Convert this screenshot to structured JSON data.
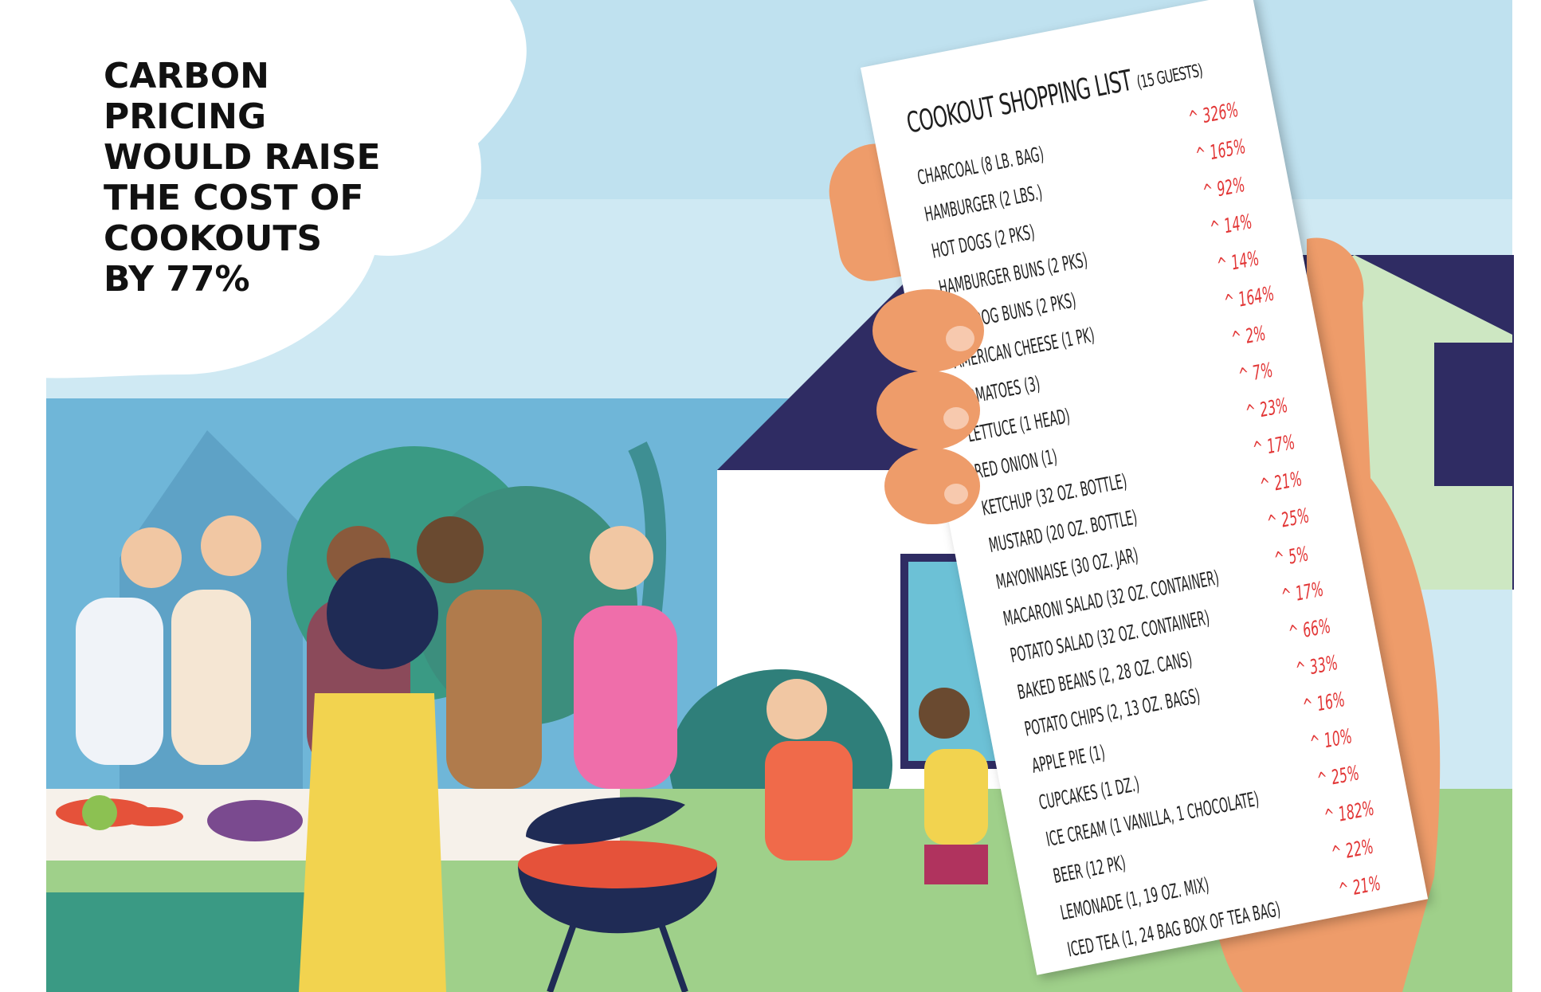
{
  "headline": [
    "CARBON",
    "PRICING",
    "WOULD RAISE",
    "THE COST OF",
    "COOKOUTS",
    "BY 77%"
  ],
  "receipt": {
    "title": "COOKOUT SHOPPING LIST",
    "subtitle": "(15 GUESTS)",
    "items": [
      {
        "item": "CHARCOAL (8 LB. BAG)",
        "change": "^ 326%"
      },
      {
        "item": "HAMBURGER (2 LBS.)",
        "change": "^ 165%"
      },
      {
        "item": "HOT DOGS (2 PKS)",
        "change": "^ 92%"
      },
      {
        "item": "HAMBURGER BUNS (2 PKS)",
        "change": "^ 14%"
      },
      {
        "item": "HOT DOG BUNS (2 PKS)",
        "change": "^ 14%"
      },
      {
        "item": "AMERICAN CHEESE (1 PK)",
        "change": "^ 164%"
      },
      {
        "item": "TOMATOES (3)",
        "change": "^ 2%"
      },
      {
        "item": "LETTUCE (1 HEAD)",
        "change": "^ 7%"
      },
      {
        "item": "RED ONION (1)",
        "change": "^ 23%"
      },
      {
        "item": "KETCHUP (32 OZ. BOTTLE)",
        "change": "^ 17%"
      },
      {
        "item": "MUSTARD (20 OZ. BOTTLE)",
        "change": "^ 21%"
      },
      {
        "item": "MAYONNAISE (30 OZ. JAR)",
        "change": "^ 25%"
      },
      {
        "item": "MACARONI SALAD (32 OZ. CONTAINER)",
        "change": "^ 5%"
      },
      {
        "item": "POTATO SALAD (32 OZ. CONTAINER)",
        "change": "^ 17%"
      },
      {
        "item": "BAKED BEANS (2, 28 OZ. CANS)",
        "change": "^ 66%"
      },
      {
        "item": "POTATO CHIPS (2, 13 OZ. BAGS)",
        "change": "^ 33%"
      },
      {
        "item": "APPLE PIE (1)",
        "change": "^ 16%"
      },
      {
        "item": "CUPCAKES (1 DZ.)",
        "change": "^ 10%"
      },
      {
        "item": "ICE CREAM (1 VANILLA, 1 CHOCOLATE)",
        "change": "^ 25%"
      },
      {
        "item": "BEER (12 PK)",
        "change": "^ 182%"
      },
      {
        "item": "LEMONADE (1, 19 OZ. MIX)",
        "change": "^ 22%"
      },
      {
        "item": "ICED TEA (1, 24 BAG BOX OF TEA BAG)",
        "change": "^ 21%"
      }
    ]
  },
  "colors": {
    "sky": "#cde8f2",
    "house_roof": "#2f2c63",
    "lawn": "#9fd08a",
    "skin_hand": "#ee9c6a",
    "percent_red": "#e23636"
  }
}
